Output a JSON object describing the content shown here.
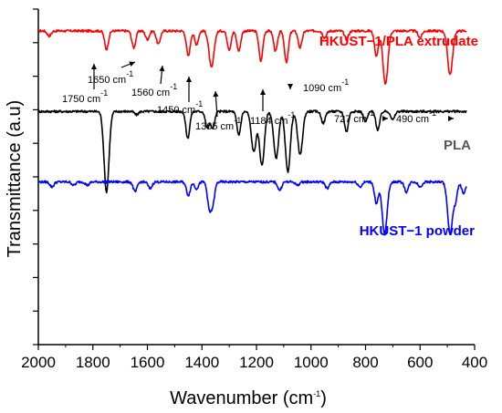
{
  "chart_data": {
    "type": "line",
    "title": "",
    "xlabel": "Wavenumber (cm",
    "xlabel_sup": "-1",
    "xlabel_end": ")",
    "ylabel": "Transmittance (a.u)",
    "x_reversed": true,
    "xlim": [
      2000,
      400
    ],
    "x_ticks": [
      "2000",
      "1800",
      "1600",
      "1400",
      "1200",
      "1000",
      "800",
      "600",
      "400"
    ],
    "x_tick_values": [
      2000,
      1800,
      1600,
      1400,
      1200,
      1000,
      800,
      600,
      400
    ],
    "ylim": [
      0,
      10
    ],
    "y_major_ticks": [
      10,
      9,
      8,
      7,
      6,
      5,
      4,
      3,
      2,
      1,
      0
    ],
    "grid": false,
    "series": [
      {
        "name": "HKUST−1/PLA extrudate",
        "color": "#ff0000",
        "baseline": 9.35,
        "end_x": 430,
        "peaks": [
          [
            1960,
            0.15
          ],
          [
            1750,
            0.55
          ],
          [
            1650,
            0.5
          ],
          [
            1600,
            0.25
          ],
          [
            1560,
            0.4
          ],
          [
            1450,
            0.75
          ],
          [
            1420,
            0.4
          ],
          [
            1365,
            1.1
          ],
          [
            1300,
            0.55
          ],
          [
            1265,
            0.6
          ],
          [
            1184,
            0.9
          ],
          [
            1130,
            0.6
          ],
          [
            1090,
            0.95
          ],
          [
            1040,
            0.5
          ],
          [
            950,
            0.2
          ],
          [
            870,
            0.25
          ],
          [
            760,
            0.75
          ],
          [
            727,
            1.6
          ],
          [
            600,
            0.2
          ],
          [
            490,
            1.3
          ]
        ]
      },
      {
        "name": "PLA",
        "color": "#000000",
        "baseline": 6.95,
        "end_x": 430,
        "peaks": [
          [
            1750,
            2.4
          ],
          [
            1640,
            0.1
          ],
          [
            1452,
            0.8
          ],
          [
            1380,
            0.5
          ],
          [
            1360,
            0.5
          ],
          [
            1265,
            0.7
          ],
          [
            1210,
            1.2
          ],
          [
            1180,
            1.6
          ],
          [
            1128,
            1.4
          ],
          [
            1085,
            1.8
          ],
          [
            1040,
            1.3
          ],
          [
            955,
            0.35
          ],
          [
            870,
            0.6
          ],
          [
            800,
            0.3
          ],
          [
            755,
            0.55
          ],
          [
            700,
            0.25
          ]
        ]
      },
      {
        "name": "HKUST−1 powder",
        "color": "#0000ff",
        "baseline": 4.85,
        "end_x": 430,
        "peaks": [
          [
            1950,
            0.15
          ],
          [
            1870,
            0.1
          ],
          [
            1820,
            0.1
          ],
          [
            1645,
            0.3
          ],
          [
            1590,
            0.2
          ],
          [
            1450,
            0.4
          ],
          [
            1420,
            0.2
          ],
          [
            1373,
            0.75
          ],
          [
            1360,
            0.6
          ],
          [
            1115,
            0.25
          ],
          [
            1050,
            0.1
          ],
          [
            940,
            0.2
          ],
          [
            820,
            0.15
          ],
          [
            760,
            0.65
          ],
          [
            730,
            1.55
          ],
          [
            650,
            0.3
          ],
          [
            600,
            0.15
          ],
          [
            490,
            1.55
          ],
          [
            470,
            0.5
          ],
          [
            440,
            0.35
          ]
        ]
      }
    ],
    "annotations": [
      {
        "label": "1750 cm",
        "sup": "-1",
        "peak_x": 1750
      },
      {
        "label": "1650 cm",
        "sup": "-1",
        "peak_x": 1650
      },
      {
        "label": "1560 cm",
        "sup": "-1",
        "peak_x": 1560
      },
      {
        "label": "1450 cm",
        "sup": "-1",
        "peak_x": 1450
      },
      {
        "label": "1365 cm",
        "sup": "-1",
        "peak_x": 1365
      },
      {
        "label": "1184 cm",
        "sup": "-1",
        "peak_x": 1184
      },
      {
        "label": "1090 cm",
        "sup": "-1",
        "peak_x": 1090
      },
      {
        "label": "727 cm",
        "sup": "-1",
        "peak_x": 727
      },
      {
        "label": "490 cm",
        "sup": "-1",
        "peak_x": 490
      }
    ]
  }
}
